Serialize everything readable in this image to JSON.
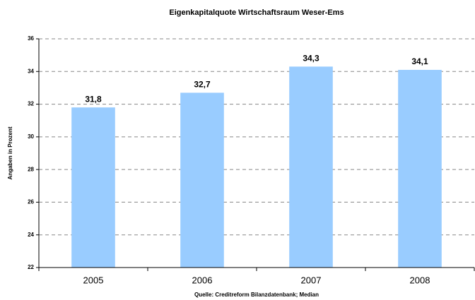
{
  "chart_data": {
    "type": "bar",
    "title": "Eigenkapitalquote Wirtschaftsraum Weser-Ems",
    "y_label": "Angaben in Prozent",
    "x_label": "Quelle: Creditreform Bilanzdatenbank; Median",
    "categories": [
      "2005",
      "2006",
      "2007",
      "2008"
    ],
    "values": [
      31.8,
      32.7,
      34.3,
      34.1
    ],
    "value_labels": [
      "31,8",
      "32,7",
      "34,3",
      "34,1"
    ],
    "color": "#99ccff",
    "ylim": [
      22,
      36
    ],
    "yticks": [
      22,
      24,
      26,
      28,
      30,
      32,
      34,
      36
    ],
    "grid": true
  }
}
